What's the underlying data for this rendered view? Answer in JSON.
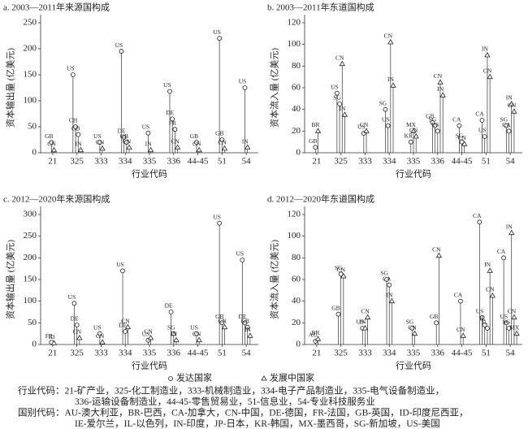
{
  "chart_data": [
    {
      "type": "lollipop",
      "title": "a. 2003—2011年来源国构成",
      "ylabel": "资本输出量 (亿美元)",
      "xlabel": "行业代码",
      "categories": [
        "21",
        "325",
        "333",
        "334",
        "335",
        "336",
        "44-45",
        "51",
        "54"
      ],
      "ylim": [
        0,
        250
      ],
      "yticks": [
        0,
        50,
        100,
        150,
        200,
        250
      ],
      "series": [
        {
          "marker": "circle",
          "points": [
            {
              "category": "21",
              "label": "GB",
              "value": 20
            },
            {
              "category": "325",
              "label": "US",
              "value": 150
            },
            {
              "category": "325",
              "label": "CH",
              "value": 50
            },
            {
              "category": "325",
              "label": "GB",
              "value": 35
            },
            {
              "category": "333",
              "label": "US",
              "value": 20
            },
            {
              "category": "334",
              "label": "US",
              "value": 195
            },
            {
              "category": "334",
              "label": "DE",
              "value": 30
            },
            {
              "category": "334",
              "label": "GB",
              "value": 20
            },
            {
              "category": "335",
              "label": "US",
              "value": 38
            },
            {
              "category": "336",
              "label": "US",
              "value": 118
            },
            {
              "category": "336",
              "label": "DE",
              "value": 65
            },
            {
              "category": "336",
              "label": "FR",
              "value": 45
            },
            {
              "category": "44-45",
              "label": "GB",
              "value": 20
            },
            {
              "category": "51",
              "label": "US",
              "value": 220
            },
            {
              "category": "51",
              "label": "GB",
              "value": 25
            },
            {
              "category": "54",
              "label": "US",
              "value": 125
            }
          ]
        },
        {
          "marker": "triangle",
          "points": [
            {
              "category": "21",
              "label": "CN",
              "value": 5
            },
            {
              "category": "325",
              "label": "IN",
              "value": 5
            },
            {
              "category": "333",
              "label": "CN",
              "value": 8
            },
            {
              "category": "334",
              "label": "CN",
              "value": 10
            },
            {
              "category": "335",
              "label": "IN",
              "value": 5
            },
            {
              "category": "336",
              "label": "CN",
              "value": 10
            },
            {
              "category": "44-45",
              "label": "CN",
              "value": 5
            },
            {
              "category": "51",
              "label": "CN",
              "value": 8
            },
            {
              "category": "54",
              "label": "IN",
              "value": 10
            }
          ]
        }
      ]
    },
    {
      "type": "lollipop",
      "title": "b. 2003—2011年东道国构成",
      "ylabel": "资本流入量 (亿美元)",
      "xlabel": "行业代码",
      "categories": [
        "21",
        "325",
        "333",
        "334",
        "335",
        "336",
        "44-45",
        "51",
        "54"
      ],
      "ylim": [
        0,
        120
      ],
      "yticks": [
        0,
        20,
        40,
        60,
        80,
        100,
        120
      ],
      "series": [
        {
          "marker": "circle",
          "points": [
            {
              "category": "21",
              "label": "GB",
              "value": 5
            },
            {
              "category": "325",
              "label": "US",
              "value": 55
            },
            {
              "category": "325",
              "label": "SG",
              "value": 45
            },
            {
              "category": "333",
              "label": "US",
              "value": 18
            },
            {
              "category": "334",
              "label": "SG",
              "value": 40
            },
            {
              "category": "334",
              "label": "US",
              "value": 25
            },
            {
              "category": "335",
              "label": "KR",
              "value": 10
            },
            {
              "category": "336",
              "label": "GB",
              "value": 28
            },
            {
              "category": "336",
              "label": "SG",
              "value": 25
            },
            {
              "category": "336",
              "label": "US",
              "value": 20
            },
            {
              "category": "44-45",
              "label": "CA",
              "value": 25
            },
            {
              "category": "44-45",
              "label": "SG",
              "value": 10
            },
            {
              "category": "51",
              "label": "CA",
              "value": 30
            },
            {
              "category": "51",
              "label": "US",
              "value": 15
            },
            {
              "category": "54",
              "label": "SG",
              "value": 25
            },
            {
              "category": "54",
              "label": "CA",
              "value": 20
            }
          ]
        },
        {
          "marker": "triangle",
          "points": [
            {
              "category": "21",
              "label": "BR",
              "value": 20
            },
            {
              "category": "325",
              "label": "CN",
              "value": 82
            },
            {
              "category": "325",
              "label": "IN",
              "value": 35
            },
            {
              "category": "333",
              "label": "CN",
              "value": 20
            },
            {
              "category": "334",
              "label": "CN",
              "value": 102
            },
            {
              "category": "334",
              "label": "IN",
              "value": 62
            },
            {
              "category": "335",
              "label": "MX",
              "value": 20
            },
            {
              "category": "335",
              "label": "CN",
              "value": 15
            },
            {
              "category": "336",
              "label": "CN",
              "value": 65
            },
            {
              "category": "336",
              "label": "IN",
              "value": 53
            },
            {
              "category": "44-45",
              "label": "CN",
              "value": 8
            },
            {
              "category": "51",
              "label": "IN",
              "value": 90
            },
            {
              "category": "51",
              "label": "CN",
              "value": 70
            },
            {
              "category": "54",
              "label": "IN",
              "value": 45
            },
            {
              "category": "54",
              "label": "CN",
              "value": 38
            }
          ]
        }
      ]
    },
    {
      "type": "lollipop",
      "title": "c. 2012—2020年来源国构成",
      "ylabel": "资本输出量 (亿美元)",
      "xlabel": "行业代码",
      "categories": [
        "21",
        "325",
        "333",
        "334",
        "335",
        "336",
        "44-45",
        "51",
        "54"
      ],
      "ylim": [
        0,
        300
      ],
      "yticks": [
        0,
        50,
        100,
        150,
        200,
        250,
        300
      ],
      "series": [
        {
          "marker": "circle",
          "points": [
            {
              "category": "21",
              "label": "FR",
              "value": 5
            },
            {
              "category": "325",
              "label": "US",
              "value": 95
            },
            {
              "category": "325",
              "label": "DE",
              "value": 45
            },
            {
              "category": "333",
              "label": "US",
              "value": 25
            },
            {
              "category": "334",
              "label": "US",
              "value": 170
            },
            {
              "category": "334",
              "label": "DE",
              "value": 30
            },
            {
              "category": "335",
              "label": "US",
              "value": 10
            },
            {
              "category": "336",
              "label": "DE",
              "value": 75
            },
            {
              "category": "336",
              "label": "SG",
              "value": 25
            },
            {
              "category": "44-45",
              "label": "US",
              "value": 25
            },
            {
              "category": "51",
              "label": "US",
              "value": 280
            },
            {
              "category": "51",
              "label": "GB",
              "value": 50
            },
            {
              "category": "54",
              "label": "US",
              "value": 195
            },
            {
              "category": "54",
              "label": "DE",
              "value": 50
            },
            {
              "category": "54",
              "label": "GB",
              "value": 40
            }
          ]
        },
        {
          "marker": "triangle",
          "points": [
            {
              "category": "21",
              "label": "ID",
              "value": 3
            },
            {
              "category": "325",
              "label": "CN",
              "value": 15
            },
            {
              "category": "333",
              "label": "CN",
              "value": 5
            },
            {
              "category": "334",
              "label": "CN",
              "value": 40
            },
            {
              "category": "335",
              "label": "CN",
              "value": 15
            },
            {
              "category": "336",
              "label": "IN",
              "value": 10
            },
            {
              "category": "44-45",
              "label": "CN",
              "value": 10
            },
            {
              "category": "51",
              "label": "CN",
              "value": 40
            },
            {
              "category": "54",
              "label": "IN",
              "value": 20
            }
          ]
        }
      ]
    },
    {
      "type": "lollipop",
      "title": "d. 2012—2020年东道国构成",
      "ylabel": "资本流入量 (亿美元)",
      "xlabel": "行业代码",
      "categories": [
        "21",
        "325",
        "333",
        "334",
        "335",
        "336",
        "44-45",
        "51",
        "54"
      ],
      "ylim": [
        0,
        120
      ],
      "yticks": [
        0,
        20,
        40,
        60,
        80,
        100,
        120
      ],
      "series": [
        {
          "marker": "circle",
          "points": [
            {
              "category": "21",
              "label": "AU",
              "value": 3
            },
            {
              "category": "325",
              "label": "GB",
              "value": 28
            },
            {
              "category": "325",
              "label": "SG",
              "value": 65
            },
            {
              "category": "333",
              "label": "US",
              "value": 15
            },
            {
              "category": "334",
              "label": "SG",
              "value": 60
            },
            {
              "category": "334",
              "label": "CA",
              "value": 55
            },
            {
              "category": "335",
              "label": "SG",
              "value": 15
            },
            {
              "category": "336",
              "label": "GB",
              "value": 20
            },
            {
              "category": "44-45",
              "label": "CA",
              "value": 40
            },
            {
              "category": "51",
              "label": "CA",
              "value": 113
            },
            {
              "category": "51",
              "label": "US",
              "value": 25
            },
            {
              "category": "51",
              "label": "IE",
              "value": 18
            },
            {
              "category": "51",
              "label": "IL",
              "value": 15
            },
            {
              "category": "54",
              "label": "CA",
              "value": 80
            },
            {
              "category": "54",
              "label": "US",
              "value": 20
            },
            {
              "category": "54",
              "label": "SG",
              "value": 15
            }
          ]
        },
        {
          "marker": "triangle",
          "points": [
            {
              "category": "21",
              "label": "BR",
              "value": 5
            },
            {
              "category": "325",
              "label": "CN",
              "value": 63
            },
            {
              "category": "333",
              "label": "IN",
              "value": 15
            },
            {
              "category": "333",
              "label": "CN",
              "value": 25
            },
            {
              "category": "334",
              "label": "IN",
              "value": 40
            },
            {
              "category": "335",
              "label": "CN",
              "value": 10
            },
            {
              "category": "336",
              "label": "CN",
              "value": 82
            },
            {
              "category": "44-45",
              "label": "CN",
              "value": 8
            },
            {
              "category": "51",
              "label": "IN",
              "value": 68
            },
            {
              "category": "51",
              "label": "CN",
              "value": 45
            },
            {
              "category": "54",
              "label": "IN",
              "value": 103
            },
            {
              "category": "54",
              "label": "CN",
              "value": 25
            },
            {
              "category": "54",
              "label": "MX",
              "value": 10
            }
          ]
        }
      ]
    }
  ],
  "legend": [
    {
      "name": "发达国家",
      "marker": "circle"
    },
    {
      "name": "发展中国家",
      "marker": "triangle"
    }
  ],
  "notes": [
    "行业代码：21-矿产业，325-化工制造业，333-机械制造业，334-电子产品制造业，335-电气设备制造业，",
    "336-运输设备制造业，44-45-零售贸易业，51-信息业，54-专业科技服务业",
    "国别代码：AU-澳大利亚，BR-巴西，CA-加拿大，CN-中国，DE-德国，FR-法国，GB-英国，ID-印度尼西亚，",
    "IE-爱尔兰，IL-以色列，IN-印度，JP-日本，KR-韩国，MX-墨西哥，SG-新加坡，US-美国"
  ]
}
